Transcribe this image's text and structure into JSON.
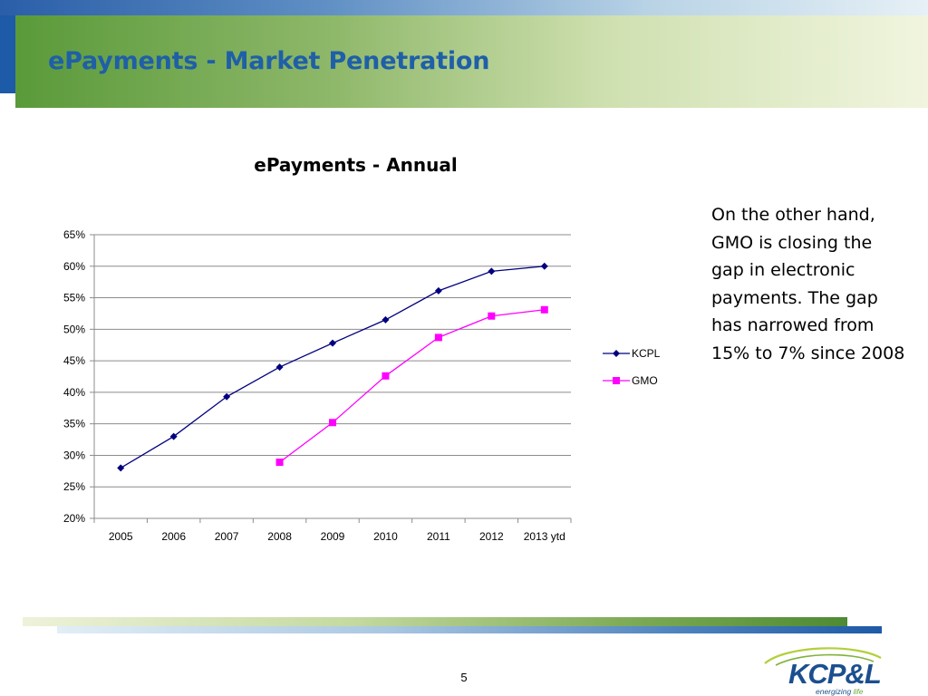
{
  "slide": {
    "title": "ePayments - Market Penetration",
    "side_text": "On the other hand, GMO is closing the gap in electronic payments. The gap has narrowed from 15% to 7% since 2008",
    "page_number": "5"
  },
  "logo": {
    "text": "KCP&L",
    "tagline_1": "energizing",
    "tagline_2": "life"
  },
  "colors": {
    "kcpl": "#00007f",
    "gmo": "#ff00ff",
    "title": "#1f5fa8"
  },
  "chart_data": {
    "type": "line",
    "title": "ePayments - Annual",
    "xlabel": "",
    "ylabel": "",
    "categories": [
      "2005",
      "2006",
      "2007",
      "2008",
      "2009",
      "2010",
      "2011",
      "2012",
      "2013 ytd"
    ],
    "ylim": [
      0.2,
      0.65
    ],
    "ytick_values": [
      0.2,
      0.25,
      0.3,
      0.35,
      0.4,
      0.45,
      0.5,
      0.55,
      0.6,
      0.65
    ],
    "ytick_labels": [
      "20%",
      "25%",
      "30%",
      "35%",
      "40%",
      "45%",
      "50%",
      "55%",
      "60%",
      "65%"
    ],
    "grid": true,
    "legend": "right",
    "series": [
      {
        "name": "KCPL",
        "marker": "diamond",
        "values": [
          0.28,
          0.33,
          0.393,
          0.44,
          0.478,
          0.515,
          0.561,
          0.592,
          0.6
        ]
      },
      {
        "name": "GMO",
        "marker": "square",
        "values": [
          null,
          null,
          null,
          0.289,
          0.352,
          0.426,
          0.487,
          0.521,
          0.531
        ]
      }
    ]
  }
}
